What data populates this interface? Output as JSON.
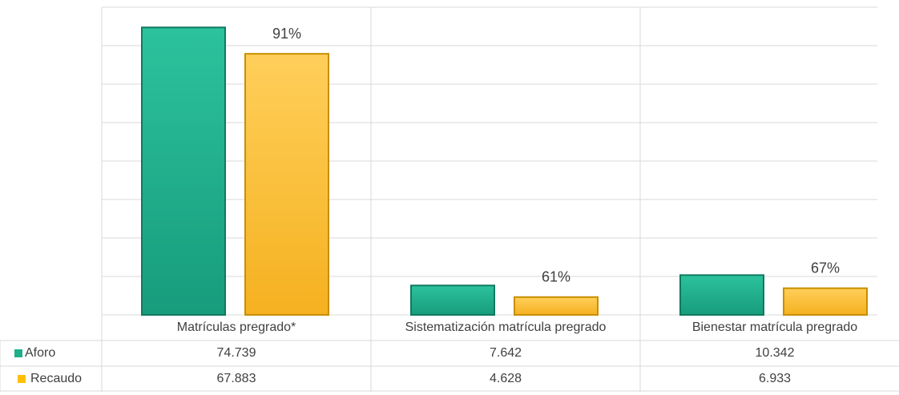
{
  "chart_data": {
    "type": "bar",
    "categories": [
      "Matrículas pregrado*",
      "Sistematización matrícula pregrado",
      "Bienestar matrícula pregrado"
    ],
    "series": [
      {
        "name": "Aforo",
        "color": "#1fae8c",
        "values": [
          74739,
          7642,
          10342
        ],
        "value_labels": [
          "74.739",
          "7.642",
          "10.342"
        ]
      },
      {
        "name": "Recaudo",
        "color": "#ffc000",
        "values": [
          67883,
          4628,
          6933
        ],
        "value_labels": [
          "67.883",
          "4.628",
          "6.933"
        ]
      }
    ],
    "annotations": [
      "91%",
      "61%",
      "67%"
    ],
    "ylim": [
      0,
      80000
    ],
    "yticks": [
      0,
      10000,
      20000,
      30000,
      40000,
      50000,
      60000,
      70000,
      80000
    ],
    "grid": true
  }
}
